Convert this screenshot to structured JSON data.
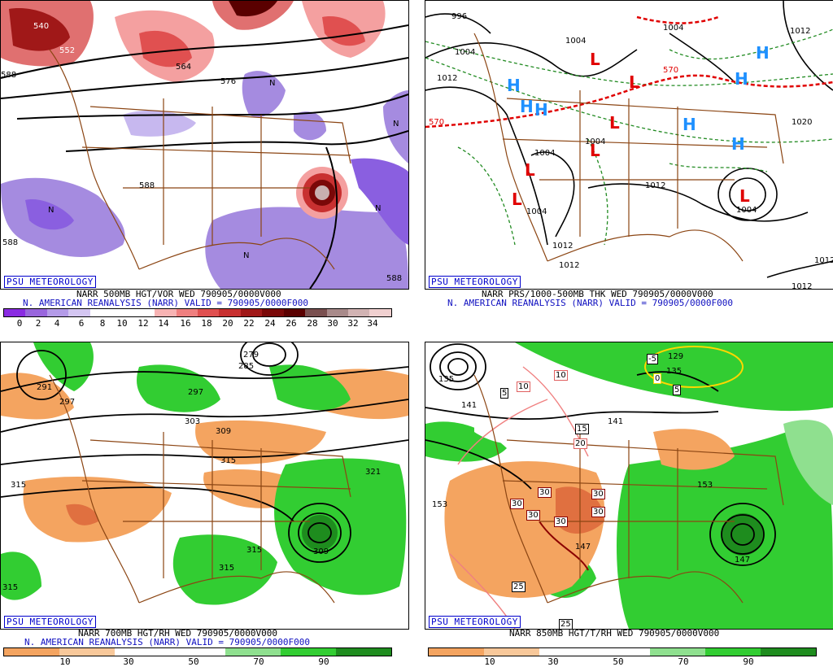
{
  "panels": {
    "tl": {
      "badge": "PSU METEOROLOGY",
      "line1": "NARR 500MB HGT/VOR WED 790905/0000V000",
      "line2": "N. AMERICAN REANALYSIS (NARR) VALID = 790905/0000F000",
      "colorbar": {
        "labels": [
          "0",
          "2",
          "4",
          "6",
          "8",
          "10",
          "12",
          "14",
          "16",
          "18",
          "20",
          "22",
          "24",
          "26",
          "28",
          "30",
          "32",
          "34"
        ],
        "colors": [
          "#8a2be2",
          "#9966dd",
          "#b49be8",
          "#d4c6f2",
          "#ffffff",
          "#ffffff",
          "#ffffff",
          "#f7b3b3",
          "#ef7f7f",
          "#e05050",
          "#c83030",
          "#a01818",
          "#7a0808",
          "#5a0000",
          "#7a5050",
          "#a88a8a",
          "#d1b3b3",
          "#f0d0d0"
        ]
      },
      "contour_labels": [
        "540",
        "552",
        "564",
        "576",
        "588",
        "588",
        "588",
        "588",
        "N",
        "N",
        "N",
        "N",
        "N"
      ]
    },
    "tr": {
      "badge": "PSU METEOROLOGY",
      "line1": "NARR PRS/1000-500MB THK WED 790905/0000V000",
      "line2": "N. AMERICAN REANALYSIS (NARR) VALID = 790905/0000F000",
      "contour_labels": [
        "996",
        "1004",
        "1004",
        "1012",
        "1012",
        "1012",
        "1004",
        "1012",
        "1012",
        "1004",
        "1004",
        "1020",
        "1012",
        "1012",
        "1004",
        "570",
        "570",
        "1004"
      ],
      "highs": [
        "H",
        "H",
        "H",
        "H",
        "H",
        "H",
        "H"
      ],
      "lows": [
        "L",
        "L",
        "L",
        "L",
        "L",
        "L",
        "L"
      ]
    },
    "bl": {
      "badge": "PSU METEOROLOGY",
      "line1": "NARR 700MB HGT/RH WED 790905/0000V000",
      "line2": "N. AMERICAN REANALYSIS (NARR) VALID = 790905/0000F000",
      "colorbar": {
        "labels": [
          "10",
          "30",
          "50",
          "70",
          "90"
        ],
        "colors": [
          "#f4a460",
          "#f8c89a",
          "#ffffff",
          "#ffffff",
          "#8fe08f",
          "#32cd32",
          "#1e8c1e"
        ]
      },
      "contour_labels": [
        "291",
        "297",
        "297",
        "303",
        "309",
        "315",
        "315",
        "321",
        "315",
        "315",
        "309",
        "285",
        "279",
        "315"
      ]
    },
    "br": {
      "badge": "PSU METEOROLOGY",
      "line1": "NARR 850MB HGT/T/RH WED 790905/0000V000",
      "colorbar": {
        "labels": [
          "10",
          "30",
          "50",
          "70",
          "90"
        ],
        "colors": [
          "#f4a460",
          "#f8c89a",
          "#ffffff",
          "#ffffff",
          "#8fe08f",
          "#32cd32",
          "#1e8c1e"
        ]
      },
      "contour_labels": [
        "135",
        "141",
        "153",
        "153",
        "141",
        "147",
        "147",
        "135",
        "129"
      ],
      "temp_boxes": [
        "10",
        "10",
        "15",
        "20",
        "5",
        "5",
        "-5",
        "30",
        "30",
        "30",
        "30",
        "30",
        "30",
        "25",
        "25",
        "0"
      ]
    }
  }
}
